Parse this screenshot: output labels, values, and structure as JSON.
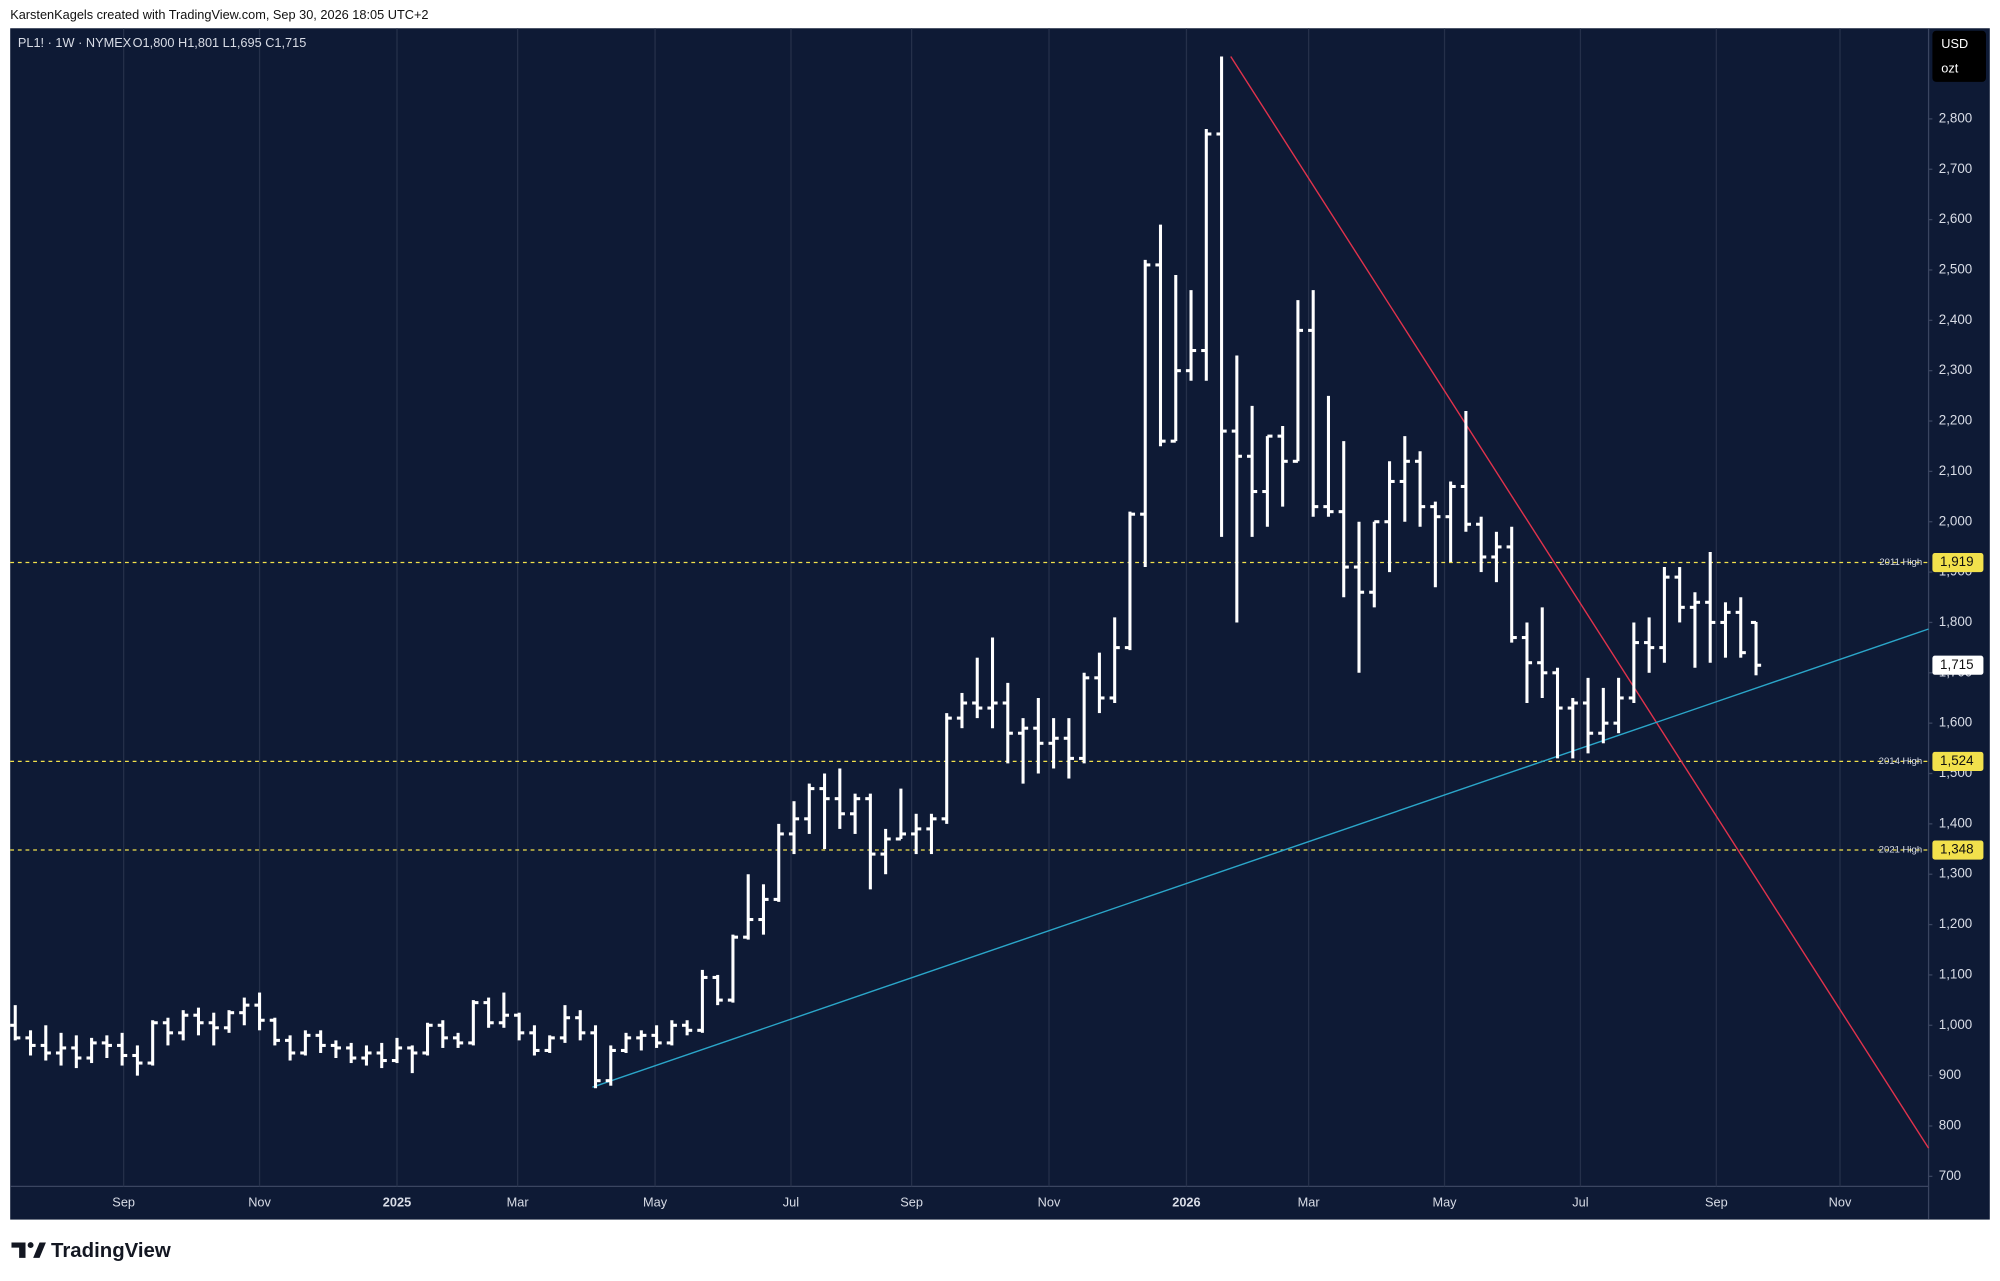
{
  "header": {
    "credit": "KarstenKagels created with TradingView.com, Sep 30, 2026 18:05 UTC+2",
    "brand": "TradingView"
  },
  "chart_data": {
    "type": "ohlc",
    "symbol": "PL1! · 1W · NYMEX",
    "ohlc_legend": "O1,800 H1,801 L1,695 C1,715",
    "currency": "USD",
    "unit": "ozt",
    "color": "#ffffff",
    "background": "#0e1a35",
    "grid": true,
    "open": [
      1000,
      975,
      960,
      945,
      955,
      935,
      965,
      960,
      940,
      925,
      1005,
      985,
      1020,
      1005,
      995,
      1025,
      1040,
      1010,
      970,
      945,
      980,
      960,
      955,
      935,
      945,
      930,
      955,
      945,
      1000,
      975,
      965,
      1045,
      1005,
      1020,
      985,
      950,
      975,
      1015,
      985,
      890,
      950,
      975,
      980,
      965,
      1000,
      990,
      1095,
      1050,
      1175,
      1210,
      1250,
      1380,
      1410,
      1470,
      1450,
      1420,
      1450,
      1340,
      1370,
      1380,
      1390,
      1410,
      1610,
      1640,
      1630,
      1640,
      1580,
      1590,
      1560,
      1570,
      1530,
      1690,
      1650,
      1750,
      2015,
      2510,
      2160,
      2300,
      2340,
      2770,
      2180,
      2130,
      2060,
      2170,
      2120,
      2380,
      2030,
      2020,
      1910,
      1860,
      2000,
      2080,
      2120,
      2030,
      2010,
      2070,
      1995,
      1930,
      1950,
      1770,
      1720,
      1700,
      1630,
      1640,
      1580,
      1600,
      1650,
      1760,
      1750,
      1890,
      1830,
      1840,
      1800,
      1820,
      1800
    ],
    "high": [
      1040,
      990,
      1000,
      985,
      980,
      975,
      980,
      985,
      960,
      1010,
      1015,
      1030,
      1035,
      1025,
      1030,
      1055,
      1065,
      1015,
      980,
      990,
      990,
      970,
      965,
      960,
      965,
      975,
      960,
      1005,
      1010,
      985,
      1050,
      1055,
      1065,
      1025,
      1000,
      980,
      1040,
      1030,
      1000,
      960,
      985,
      990,
      1000,
      1010,
      1010,
      1110,
      1100,
      1180,
      1300,
      1280,
      1400,
      1445,
      1480,
      1500,
      1510,
      1460,
      1460,
      1390,
      1470,
      1420,
      1420,
      1620,
      1660,
      1730,
      1770,
      1680,
      1610,
      1650,
      1610,
      1610,
      1700,
      1740,
      1810,
      2020,
      2520,
      2590,
      2490,
      2460,
      2780,
      2924,
      2330,
      2230,
      2170,
      2190,
      2440,
      2460,
      2250,
      2160,
      2000,
      2000,
      2120,
      2170,
      2140,
      2040,
      2080,
      2220,
      2010,
      1980,
      1990,
      1800,
      1830,
      1710,
      1650,
      1690,
      1670,
      1690,
      1800,
      1810,
      1910,
      1910,
      1860,
      1940,
      1840,
      1850,
      1801
    ],
    "low": [
      970,
      940,
      930,
      920,
      915,
      925,
      935,
      920,
      900,
      920,
      960,
      970,
      980,
      960,
      985,
      1000,
      990,
      960,
      930,
      940,
      945,
      935,
      925,
      920,
      915,
      925,
      905,
      940,
      955,
      955,
      960,
      995,
      995,
      970,
      940,
      945,
      965,
      970,
      875,
      880,
      945,
      950,
      955,
      960,
      980,
      985,
      1040,
      1045,
      1170,
      1180,
      1245,
      1340,
      1380,
      1350,
      1390,
      1380,
      1270,
      1300,
      1370,
      1340,
      1340,
      1400,
      1590,
      1610,
      1590,
      1520,
      1480,
      1500,
      1510,
      1490,
      1520,
      1620,
      1640,
      1745,
      1910,
      2150,
      2160,
      2280,
      2280,
      1970,
      1800,
      1970,
      1990,
      2030,
      2120,
      2010,
      2010,
      1850,
      1700,
      1830,
      1900,
      2000,
      1990,
      1870,
      1920,
      1980,
      1900,
      1880,
      1760,
      1640,
      1650,
      1530,
      1530,
      1540,
      1560,
      1580,
      1640,
      1700,
      1720,
      1800,
      1710,
      1720,
      1730,
      1730,
      1695
    ],
    "close": [
      975,
      960,
      945,
      955,
      935,
      965,
      960,
      940,
      925,
      1005,
      985,
      1020,
      1005,
      995,
      1025,
      1040,
      1010,
      970,
      945,
      980,
      960,
      955,
      935,
      945,
      930,
      955,
      945,
      1000,
      975,
      965,
      1045,
      1005,
      1020,
      985,
      950,
      975,
      1015,
      985,
      890,
      950,
      975,
      980,
      965,
      1000,
      990,
      1095,
      1050,
      1175,
      1210,
      1250,
      1380,
      1410,
      1470,
      1450,
      1420,
      1450,
      1340,
      1370,
      1380,
      1390,
      1410,
      1610,
      1640,
      1630,
      1640,
      1580,
      1590,
      1560,
      1570,
      1530,
      1690,
      1650,
      1750,
      2015,
      2510,
      2160,
      2300,
      2340,
      2770,
      2180,
      2130,
      2060,
      2170,
      2120,
      2380,
      2030,
      2020,
      1910,
      1860,
      2000,
      2080,
      2120,
      2030,
      2010,
      2070,
      1995,
      1930,
      1950,
      1770,
      1720,
      1700,
      1630,
      1640,
      1580,
      1600,
      1650,
      1760,
      1750,
      1890,
      1830,
      1840,
      1800,
      1820,
      1740,
      1715
    ],
    "xlim": [
      -0.33,
      125.3
    ],
    "xticks": [
      {
        "value": 7.1,
        "label": "Sep"
      },
      {
        "value": 16.0,
        "label": "Nov"
      },
      {
        "value": 25.0,
        "label": "2025"
      },
      {
        "value": 32.9,
        "label": "Mar"
      },
      {
        "value": 41.9,
        "label": "May"
      },
      {
        "value": 50.8,
        "label": "Jul"
      },
      {
        "value": 58.7,
        "label": "Sep"
      },
      {
        "value": 67.7,
        "label": "Nov"
      },
      {
        "value": 76.7,
        "label": "2026"
      },
      {
        "value": 84.7,
        "label": "Mar"
      },
      {
        "value": 93.6,
        "label": "May"
      },
      {
        "value": 102.5,
        "label": "Jul"
      },
      {
        "value": 111.4,
        "label": "Sep"
      },
      {
        "value": 119.5,
        "label": "Nov"
      }
    ],
    "ylim": [
      680,
      2980
    ],
    "yticks": [
      700,
      800,
      900,
      {
        "value": 1000,
        "label": "1,000"
      },
      {
        "value": 1100,
        "label": "1,100"
      },
      {
        "value": 1200,
        "label": "1,200"
      },
      {
        "value": 1300,
        "label": "1,300"
      },
      {
        "value": 1400,
        "label": "1,400"
      },
      {
        "value": 1500,
        "label": "1,500"
      },
      {
        "value": 1600,
        "label": "1,600"
      },
      {
        "value": 1700,
        "label": "1,700"
      },
      {
        "value": 1800,
        "label": "1,800"
      },
      {
        "value": 1900,
        "label": "1,900"
      },
      {
        "value": 2000,
        "label": "2,000"
      },
      {
        "value": 2100,
        "label": "2,100"
      },
      {
        "value": 2200,
        "label": "2,200"
      },
      {
        "value": 2300,
        "label": "2,300"
      },
      {
        "value": 2400,
        "label": "2,400"
      },
      {
        "value": 2500,
        "label": "2,500"
      },
      {
        "value": 2600,
        "label": "2,600"
      },
      {
        "value": 2700,
        "label": "2,700"
      },
      {
        "value": 2800,
        "label": "2,800"
      }
    ],
    "levels": [
      {
        "name": "2011 High",
        "value": 1919,
        "label": "1,919"
      },
      {
        "name": "2014 High",
        "value": 1524,
        "label": "1,524"
      },
      {
        "name": "2021 High",
        "value": 1348,
        "label": "1,348"
      }
    ],
    "level_color": "#f2e14c",
    "last_price": {
      "value": 1715,
      "label": "1,715"
    },
    "trendlines": [
      {
        "color": "#e0324c",
        "points": [
          [
            79.6,
            2924
          ],
          [
            125.3,
            756
          ]
        ]
      },
      {
        "color": "#2ba6c9",
        "points": [
          [
            37.8,
            877
          ],
          [
            125.3,
            1787
          ]
        ]
      }
    ]
  }
}
